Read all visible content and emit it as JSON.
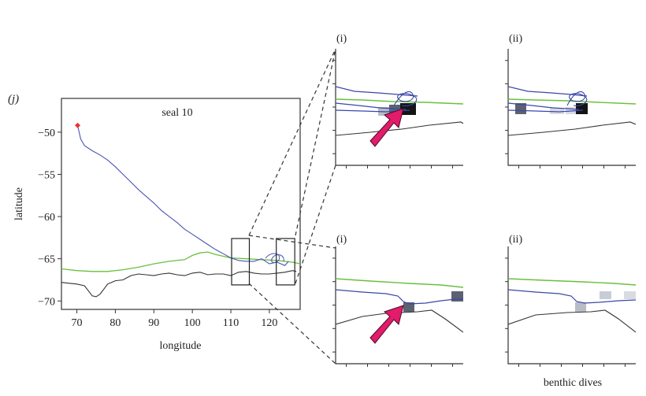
{
  "panel_label": "(j)",
  "main": {
    "title": "seal 10",
    "xlabel": "longitude",
    "ylabel": "latitude",
    "xlim": [
      66,
      128
    ],
    "ylim": [
      -71,
      -46
    ],
    "xticks": [
      70,
      80,
      90,
      100,
      110,
      120
    ],
    "yticks": [
      -50,
      -55,
      -60,
      -65,
      -70
    ],
    "xtick_labels": [
      "70",
      "80",
      "90",
      "100",
      "110",
      "120"
    ],
    "ytick_labels": [
      "−50",
      "−55",
      "−60",
      "−65",
      "−70"
    ],
    "start_marker_color": "#e8362b"
  },
  "chart_data": [
    {
      "type": "line",
      "id": "main-map",
      "title": "seal 10",
      "xlabel": "longitude",
      "ylabel": "latitude",
      "xlim": [
        66,
        128
      ],
      "ylim": [
        -71,
        -46
      ],
      "grid": false,
      "series": [
        {
          "role": "seal-track",
          "color": "#4a55b5",
          "x": [
            70.2,
            71,
            72,
            74,
            76,
            78,
            80,
            82,
            84,
            86,
            88,
            90,
            92,
            94,
            96,
            98,
            100,
            102,
            104,
            106,
            108,
            110,
            112,
            114,
            116,
            118,
            120,
            122,
            124,
            125
          ],
          "y": [
            -49.2,
            -50.8,
            -51.6,
            -52.2,
            -52.7,
            -53.3,
            -54.1,
            -55.0,
            -55.9,
            -56.8,
            -57.6,
            -58.4,
            -59.3,
            -60.0,
            -60.7,
            -61.5,
            -62.1,
            -62.7,
            -63.3,
            -63.9,
            -64.4,
            -64.9,
            -65.2,
            -65.3,
            -65.3,
            -65.0,
            -65.6,
            -65.4,
            -65.8,
            -65.3
          ]
        },
        {
          "role": "front-line",
          "color": "#6abf3f",
          "x": [
            66,
            70,
            74,
            78,
            82,
            86,
            90,
            94,
            98,
            100,
            102,
            104,
            106,
            110,
            114,
            118,
            122,
            126,
            128
          ],
          "y": [
            -66.2,
            -66.4,
            -66.5,
            -66.5,
            -66.3,
            -66.0,
            -65.6,
            -65.3,
            -65.1,
            -64.6,
            -64.3,
            -64.2,
            -64.5,
            -64.9,
            -65.0,
            -65.1,
            -65.2,
            -65.4,
            -65.6
          ]
        },
        {
          "role": "coastline",
          "color": "#333333",
          "x": [
            66,
            68,
            70,
            72,
            73,
            74,
            75,
            76,
            77,
            78,
            79,
            80,
            82,
            84,
            86,
            88,
            90,
            92,
            94,
            96,
            98,
            100,
            102,
            104,
            106,
            108,
            110,
            112,
            114,
            116,
            118,
            120,
            122,
            124,
            126,
            127
          ],
          "y": [
            -67.8,
            -67.9,
            -68.0,
            -68.2,
            -68.8,
            -69.4,
            -69.5,
            -69.2,
            -68.6,
            -68.0,
            -67.8,
            -67.6,
            -67.5,
            -67.0,
            -66.8,
            -66.9,
            -67.0,
            -66.8,
            -66.7,
            -66.9,
            -67.0,
            -66.7,
            -66.6,
            -66.9,
            -66.8,
            -66.8,
            -67.0,
            -66.6,
            -66.5,
            -66.7,
            -66.8,
            -66.8,
            -66.7,
            -66.6,
            -66.4,
            -66.5
          ]
        }
      ],
      "annotations": [
        {
          "label": "start",
          "x": 70.2,
          "y": -49.2
        },
        {
          "label": "box-1",
          "x_range": [
            110.2,
            114.8
          ],
          "y_range": [
            -68.1,
            -62.6
          ]
        },
        {
          "label": "box-2",
          "x_range": [
            121.8,
            126.6
          ],
          "y_range": [
            -68.1,
            -62.6
          ]
        }
      ]
    }
  ],
  "insets": {
    "top_left_label": "(i)",
    "top_right_label": "(ii)",
    "bottom_left_label": "(i)",
    "bottom_right_label": "(ii)",
    "footer_label": "benthic dives"
  }
}
